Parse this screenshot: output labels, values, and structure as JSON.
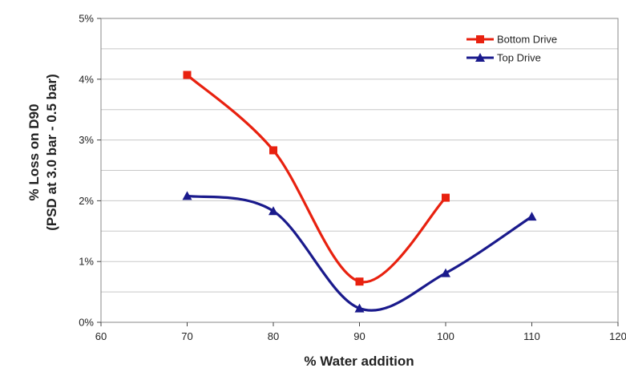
{
  "chart_data": {
    "type": "line",
    "smooth": true,
    "xlabel": "% Water addition",
    "ylabel_line1": "% Loss on D90",
    "ylabel_line2": "(PSD at 3.0 bar - 0.5 bar)",
    "xlim": [
      60,
      120
    ],
    "ylim": [
      0,
      5
    ],
    "x_ticks": [
      "60",
      "70",
      "80",
      "90",
      "100",
      "110",
      "120"
    ],
    "y_ticks": [
      "0%",
      "1%",
      "2%",
      "3%",
      "4%",
      "5%"
    ],
    "grid": "horizontal",
    "legend_position": "top-right",
    "series": [
      {
        "name": "Bottom Drive",
        "color": "#e8210f",
        "marker": "square",
        "x": [
          70,
          80,
          90,
          100
        ],
        "y": [
          4.07,
          2.83,
          0.67,
          2.05
        ]
      },
      {
        "name": "Top Drive",
        "color": "#1a1a8c",
        "marker": "triangle",
        "x": [
          70,
          80,
          90,
          100,
          110
        ],
        "y": [
          2.08,
          1.83,
          0.23,
          0.81,
          1.74
        ]
      }
    ]
  }
}
